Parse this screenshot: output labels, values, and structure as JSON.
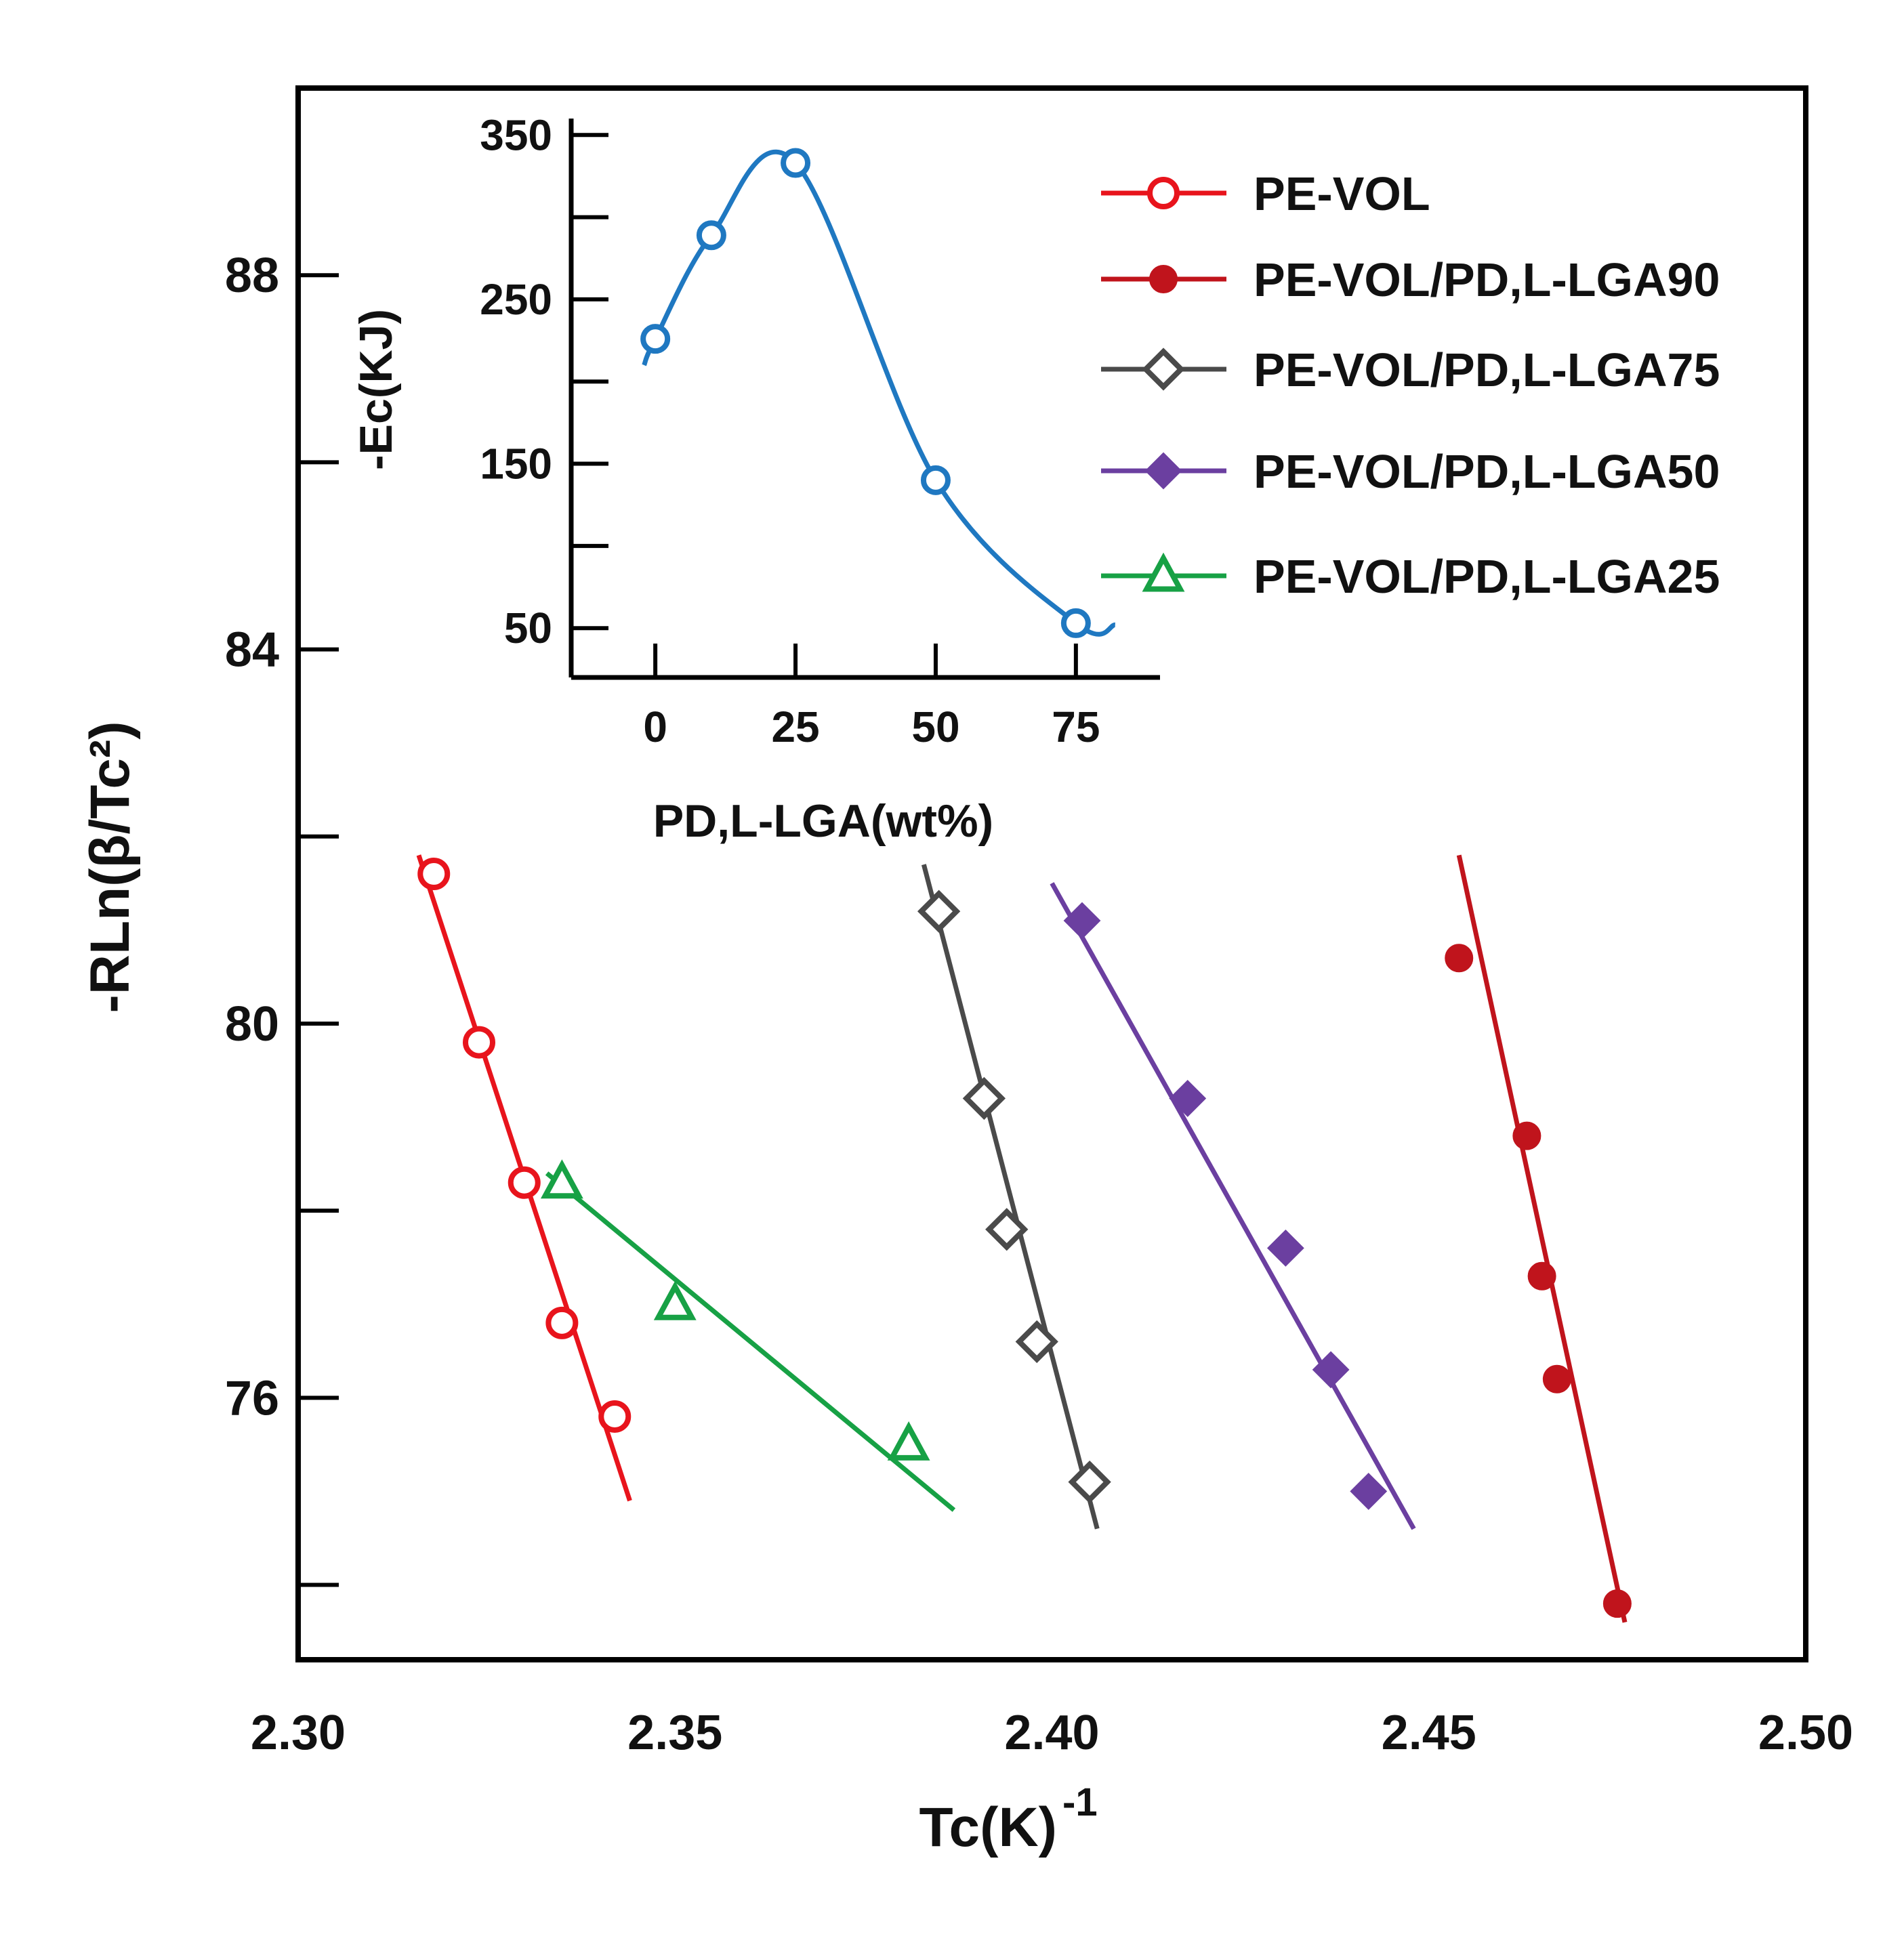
{
  "chart_data": [
    {
      "type": "scatter",
      "xlabel": "Tc(K)",
      "xlabel_superscript": "-1",
      "ylabel": "-RLn(β/Tc²)",
      "xlim": [
        2.3,
        2.5
      ],
      "ylim": [
        73.2,
        90.0
      ],
      "x_ticks": [
        "2.30",
        "2.35",
        "2.40",
        "2.45",
        "2.50"
      ],
      "y_ticks": [
        "76",
        "80",
        "84",
        "88"
      ],
      "y_tick_values": [
        76,
        80,
        84,
        88
      ],
      "grid": false,
      "legend_position": "top-right",
      "series": [
        {
          "name": "PE-VOL",
          "color": "#e8141c",
          "marker": "open-circle",
          "points": [
            [
              2.318,
              81.6
            ],
            [
              2.324,
              79.8
            ],
            [
              2.33,
              78.3
            ],
            [
              2.335,
              76.8
            ],
            [
              2.342,
              75.8
            ]
          ],
          "fit": [
            [
              2.316,
              81.8
            ],
            [
              2.344,
              74.9
            ]
          ]
        },
        {
          "name": "PE-VOL/PD,L-LGA90",
          "color": "#c0141c",
          "marker": "filled-circle",
          "points": [
            [
              2.454,
              80.7
            ],
            [
              2.463,
              78.8
            ],
            [
              2.465,
              77.3
            ],
            [
              2.467,
              76.2
            ],
            [
              2.475,
              73.8
            ]
          ],
          "fit": [
            [
              2.454,
              81.8
            ],
            [
              2.476,
              73.6
            ]
          ]
        },
        {
          "name": "PE-VOL/PD,L-LGA75",
          "color": "#4a4a4a",
          "marker": "open-diamond",
          "points": [
            [
              2.385,
              81.2
            ],
            [
              2.391,
              79.2
            ],
            [
              2.394,
              77.8
            ],
            [
              2.398,
              76.6
            ],
            [
              2.405,
              75.1
            ]
          ],
          "fit": [
            [
              2.383,
              81.7
            ],
            [
              2.406,
              74.6
            ]
          ]
        },
        {
          "name": "PE-VOL/PD,L-LGA50",
          "color": "#6b3fa0",
          "marker": "filled-diamond",
          "points": [
            [
              2.404,
              81.1
            ],
            [
              2.418,
              79.2
            ],
            [
              2.431,
              77.6
            ],
            [
              2.437,
              76.3
            ],
            [
              2.442,
              75.0
            ]
          ],
          "fit": [
            [
              2.4,
              81.5
            ],
            [
              2.448,
              74.6
            ]
          ]
        },
        {
          "name": "PE-VOL/PD,L-LGA25",
          "color": "#17a145",
          "marker": "open-triangle",
          "points": [
            [
              2.335,
              78.3
            ],
            [
              2.35,
              77.0
            ],
            [
              2.381,
              75.5
            ]
          ],
          "fit": [
            [
              2.333,
              78.4
            ],
            [
              2.387,
              74.8
            ]
          ]
        }
      ]
    },
    {
      "type": "line",
      "xlabel": "PD,L-LGA(wt%)",
      "ylabel": "-Ec(KJ)",
      "xlim": [
        -15,
        90
      ],
      "ylim": [
        20,
        360
      ],
      "x_ticks": [
        "0",
        "25",
        "50",
        "75"
      ],
      "y_ticks": [
        "50",
        "150",
        "250",
        "350"
      ],
      "y_tick_values": [
        50,
        150,
        250,
        350
      ],
      "series": [
        {
          "color": "#1f78c1",
          "marker": "open-circle",
          "x": [
            0,
            10,
            25,
            50,
            75
          ],
          "values": [
            226,
            289,
            333,
            140,
            53
          ]
        }
      ]
    }
  ]
}
